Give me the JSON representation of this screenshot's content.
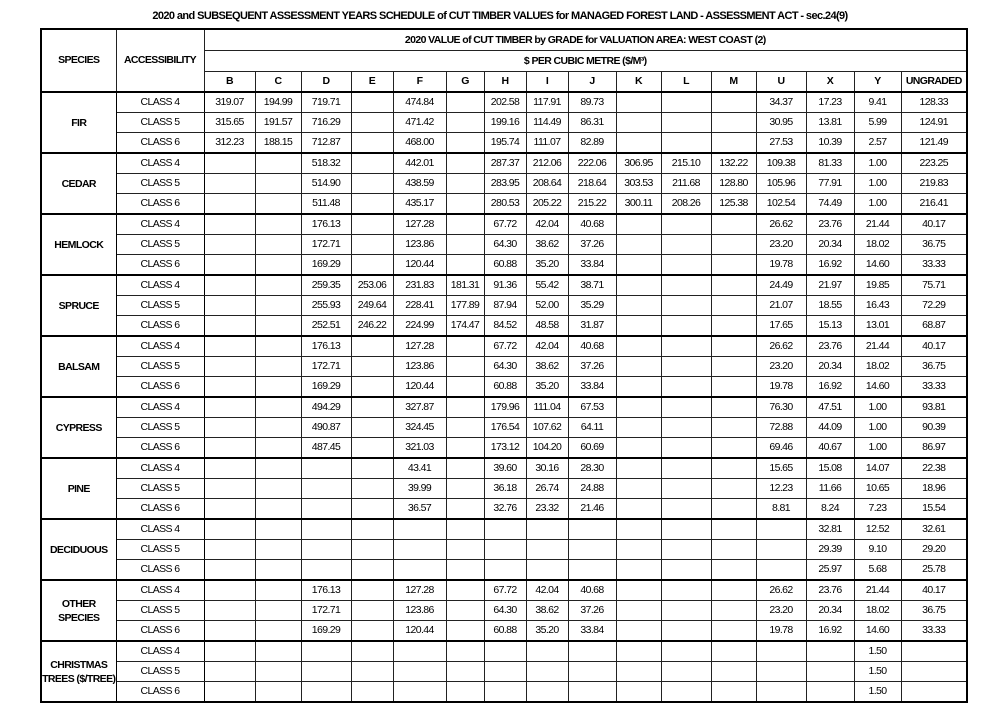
{
  "title": "2020 and SUBSEQUENT ASSESSMENT YEARS SCHEDULE of CUT TIMBER VALUES for  MANAGED FOREST LAND - ASSESSMENT ACT - sec.24(9)",
  "header": {
    "species": "SPECIES",
    "accessibility": "ACCESSIBILITY",
    "value_title": "2020 VALUE of CUT TIMBER by GRADE for VALUATION AREA: WEST COAST (2)",
    "unit": "$ PER CUBIC METRE ($/M³)",
    "grades": [
      "B",
      "C",
      "D",
      "E",
      "F",
      "G",
      "H",
      "I",
      "J",
      "K",
      "L",
      "M",
      "U",
      "X",
      "Y",
      "UNGRADED"
    ]
  },
  "groups": [
    {
      "species": "FIR",
      "rows": [
        {
          "class": "CLASS 4",
          "values": [
            "319.07",
            "194.99",
            "719.71",
            "",
            "474.84",
            "",
            "202.58",
            "117.91",
            "89.73",
            "",
            "",
            "",
            "34.37",
            "17.23",
            "9.41",
            "128.33"
          ]
        },
        {
          "class": "CLASS 5",
          "values": [
            "315.65",
            "191.57",
            "716.29",
            "",
            "471.42",
            "",
            "199.16",
            "114.49",
            "86.31",
            "",
            "",
            "",
            "30.95",
            "13.81",
            "5.99",
            "124.91"
          ]
        },
        {
          "class": "CLASS 6",
          "values": [
            "312.23",
            "188.15",
            "712.87",
            "",
            "468.00",
            "",
            "195.74",
            "111.07",
            "82.89",
            "",
            "",
            "",
            "27.53",
            "10.39",
            "2.57",
            "121.49"
          ]
        }
      ]
    },
    {
      "species": "CEDAR",
      "rows": [
        {
          "class": "CLASS 4",
          "values": [
            "",
            "",
            "518.32",
            "",
            "442.01",
            "",
            "287.37",
            "212.06",
            "222.06",
            "306.95",
            "215.10",
            "132.22",
            "109.38",
            "81.33",
            "1.00",
            "223.25"
          ]
        },
        {
          "class": "CLASS 5",
          "values": [
            "",
            "",
            "514.90",
            "",
            "438.59",
            "",
            "283.95",
            "208.64",
            "218.64",
            "303.53",
            "211.68",
            "128.80",
            "105.96",
            "77.91",
            "1.00",
            "219.83"
          ]
        },
        {
          "class": "CLASS 6",
          "values": [
            "",
            "",
            "511.48",
            "",
            "435.17",
            "",
            "280.53",
            "205.22",
            "215.22",
            "300.11",
            "208.26",
            "125.38",
            "102.54",
            "74.49",
            "1.00",
            "216.41"
          ]
        }
      ]
    },
    {
      "species": "HEMLOCK",
      "rows": [
        {
          "class": "CLASS 4",
          "values": [
            "",
            "",
            "176.13",
            "",
            "127.28",
            "",
            "67.72",
            "42.04",
            "40.68",
            "",
            "",
            "",
            "26.62",
            "23.76",
            "21.44",
            "40.17"
          ]
        },
        {
          "class": "CLASS 5",
          "values": [
            "",
            "",
            "172.71",
            "",
            "123.86",
            "",
            "64.30",
            "38.62",
            "37.26",
            "",
            "",
            "",
            "23.20",
            "20.34",
            "18.02",
            "36.75"
          ]
        },
        {
          "class": "CLASS 6",
          "values": [
            "",
            "",
            "169.29",
            "",
            "120.44",
            "",
            "60.88",
            "35.20",
            "33.84",
            "",
            "",
            "",
            "19.78",
            "16.92",
            "14.60",
            "33.33"
          ]
        }
      ]
    },
    {
      "species": "SPRUCE",
      "rows": [
        {
          "class": "CLASS 4",
          "values": [
            "",
            "",
            "259.35",
            "253.06",
            "231.83",
            "181.31",
            "91.36",
            "55.42",
            "38.71",
            "",
            "",
            "",
            "24.49",
            "21.97",
            "19.85",
            "75.71"
          ]
        },
        {
          "class": "CLASS 5",
          "values": [
            "",
            "",
            "255.93",
            "249.64",
            "228.41",
            "177.89",
            "87.94",
            "52.00",
            "35.29",
            "",
            "",
            "",
            "21.07",
            "18.55",
            "16.43",
            "72.29"
          ]
        },
        {
          "class": "CLASS 6",
          "values": [
            "",
            "",
            "252.51",
            "246.22",
            "224.99",
            "174.47",
            "84.52",
            "48.58",
            "31.87",
            "",
            "",
            "",
            "17.65",
            "15.13",
            "13.01",
            "68.87"
          ]
        }
      ]
    },
    {
      "species": "BALSAM",
      "rows": [
        {
          "class": "CLASS 4",
          "values": [
            "",
            "",
            "176.13",
            "",
            "127.28",
            "",
            "67.72",
            "42.04",
            "40.68",
            "",
            "",
            "",
            "26.62",
            "23.76",
            "21.44",
            "40.17"
          ]
        },
        {
          "class": "CLASS 5",
          "values": [
            "",
            "",
            "172.71",
            "",
            "123.86",
            "",
            "64.30",
            "38.62",
            "37.26",
            "",
            "",
            "",
            "23.20",
            "20.34",
            "18.02",
            "36.75"
          ]
        },
        {
          "class": "CLASS 6",
          "values": [
            "",
            "",
            "169.29",
            "",
            "120.44",
            "",
            "60.88",
            "35.20",
            "33.84",
            "",
            "",
            "",
            "19.78",
            "16.92",
            "14.60",
            "33.33"
          ]
        }
      ]
    },
    {
      "species": "CYPRESS",
      "rows": [
        {
          "class": "CLASS 4",
          "values": [
            "",
            "",
            "494.29",
            "",
            "327.87",
            "",
            "179.96",
            "111.04",
            "67.53",
            "",
            "",
            "",
            "76.30",
            "47.51",
            "1.00",
            "93.81"
          ]
        },
        {
          "class": "CLASS 5",
          "values": [
            "",
            "",
            "490.87",
            "",
            "324.45",
            "",
            "176.54",
            "107.62",
            "64.11",
            "",
            "",
            "",
            "72.88",
            "44.09",
            "1.00",
            "90.39"
          ]
        },
        {
          "class": "CLASS 6",
          "values": [
            "",
            "",
            "487.45",
            "",
            "321.03",
            "",
            "173.12",
            "104.20",
            "60.69",
            "",
            "",
            "",
            "69.46",
            "40.67",
            "1.00",
            "86.97"
          ]
        }
      ]
    },
    {
      "species": "PINE",
      "rows": [
        {
          "class": "CLASS 4",
          "values": [
            "",
            "",
            "",
            "",
            "43.41",
            "",
            "39.60",
            "30.16",
            "28.30",
            "",
            "",
            "",
            "15.65",
            "15.08",
            "14.07",
            "22.38"
          ]
        },
        {
          "class": "CLASS 5",
          "values": [
            "",
            "",
            "",
            "",
            "39.99",
            "",
            "36.18",
            "26.74",
            "24.88",
            "",
            "",
            "",
            "12.23",
            "11.66",
            "10.65",
            "18.96"
          ]
        },
        {
          "class": "CLASS 6",
          "values": [
            "",
            "",
            "",
            "",
            "36.57",
            "",
            "32.76",
            "23.32",
            "21.46",
            "",
            "",
            "",
            "8.81",
            "8.24",
            "7.23",
            "15.54"
          ]
        }
      ]
    },
    {
      "species": "DECIDUOUS",
      "rows": [
        {
          "class": "CLASS 4",
          "values": [
            "",
            "",
            "",
            "",
            "",
            "",
            "",
            "",
            "",
            "",
            "",
            "",
            "",
            "32.81",
            "12.52",
            "32.61"
          ]
        },
        {
          "class": "CLASS 5",
          "values": [
            "",
            "",
            "",
            "",
            "",
            "",
            "",
            "",
            "",
            "",
            "",
            "",
            "",
            "29.39",
            "9.10",
            "29.20"
          ]
        },
        {
          "class": "CLASS 6",
          "values": [
            "",
            "",
            "",
            "",
            "",
            "",
            "",
            "",
            "",
            "",
            "",
            "",
            "",
            "25.97",
            "5.68",
            "25.78"
          ]
        }
      ]
    },
    {
      "species": "OTHER SPECIES",
      "rows": [
        {
          "class": "CLASS 4",
          "values": [
            "",
            "",
            "176.13",
            "",
            "127.28",
            "",
            "67.72",
            "42.04",
            "40.68",
            "",
            "",
            "",
            "26.62",
            "23.76",
            "21.44",
            "40.17"
          ]
        },
        {
          "class": "CLASS 5",
          "values": [
            "",
            "",
            "172.71",
            "",
            "123.86",
            "",
            "64.30",
            "38.62",
            "37.26",
            "",
            "",
            "",
            "23.20",
            "20.34",
            "18.02",
            "36.75"
          ]
        },
        {
          "class": "CLASS 6",
          "values": [
            "",
            "",
            "169.29",
            "",
            "120.44",
            "",
            "60.88",
            "35.20",
            "33.84",
            "",
            "",
            "",
            "19.78",
            "16.92",
            "14.60",
            "33.33"
          ]
        }
      ]
    },
    {
      "species": "CHRISTMAS TREES ($/TREE)",
      "rows": [
        {
          "class": "CLASS 4",
          "values": [
            "",
            "",
            "",
            "",
            "",
            "",
            "",
            "",
            "",
            "",
            "",
            "",
            "",
            "",
            "1.50",
            ""
          ]
        },
        {
          "class": "CLASS 5",
          "values": [
            "",
            "",
            "",
            "",
            "",
            "",
            "",
            "",
            "",
            "",
            "",
            "",
            "",
            "",
            "1.50",
            ""
          ]
        },
        {
          "class": "CLASS 6",
          "values": [
            "",
            "",
            "",
            "",
            "",
            "",
            "",
            "",
            "",
            "",
            "",
            "",
            "",
            "",
            "1.50",
            ""
          ]
        }
      ]
    }
  ]
}
